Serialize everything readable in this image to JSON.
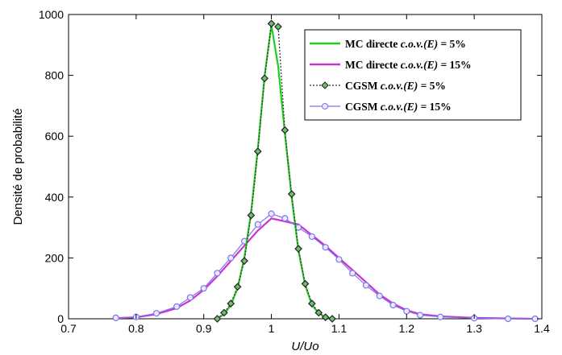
{
  "chart_data": {
    "type": "line",
    "xlabel": "U/Uo",
    "ylabel": "Densité de probabilité",
    "xlim": [
      0.7,
      1.4
    ],
    "ylim": [
      0,
      1000
    ],
    "x_ticks": [
      "0.7",
      "0.8",
      "0.9",
      "1",
      "1.1",
      "1.2",
      "1.3",
      "1.4"
    ],
    "y_ticks": [
      "0",
      "200",
      "400",
      "600",
      "800",
      "1000"
    ],
    "grid": false,
    "legend_position": "top-right",
    "series": [
      {
        "name": "MC directe c.o.v.(E) = 5%",
        "legend_prefix": "MC directe",
        "legend_math": "c.o.v.(E)",
        "legend_value": "= 5%",
        "color": "#22cc22",
        "marker": "none",
        "x": [
          0.92,
          0.93,
          0.94,
          0.95,
          0.96,
          0.97,
          0.98,
          0.99,
          1.0,
          1.01,
          1.02,
          1.03,
          1.04,
          1.05,
          1.06,
          1.07,
          1.08,
          1.09
        ],
        "y": [
          0,
          15,
          45,
          100,
          200,
          350,
          560,
          800,
          965,
          830,
          610,
          400,
          225,
          110,
          45,
          18,
          5,
          0
        ]
      },
      {
        "name": "MC directe c.o.v.(E) = 15%",
        "legend_prefix": "MC directe",
        "legend_math": "c.o.v.(E)",
        "legend_value": "= 15%",
        "color": "#cc33cc",
        "marker": "none",
        "x": [
          0.77,
          0.8,
          0.83,
          0.86,
          0.88,
          0.9,
          0.92,
          0.94,
          0.96,
          0.98,
          1.0,
          1.02,
          1.04,
          1.06,
          1.08,
          1.1,
          1.12,
          1.14,
          1.16,
          1.18,
          1.2,
          1.22,
          1.25,
          1.3,
          1.35,
          1.39
        ],
        "y": [
          2,
          5,
          15,
          35,
          60,
          95,
          140,
          190,
          240,
          290,
          330,
          320,
          310,
          275,
          240,
          200,
          160,
          120,
          80,
          50,
          28,
          15,
          8,
          3,
          1,
          0
        ]
      },
      {
        "name": "CGSM c.o.v.(E) = 5%",
        "legend_prefix": "CGSM",
        "legend_math": "c.o.v.(E)",
        "legend_value": "= 5%",
        "color": "#333333",
        "marker": "diamond",
        "x": [
          0.92,
          0.93,
          0.94,
          0.95,
          0.96,
          0.97,
          0.98,
          0.99,
          1.0,
          1.01,
          1.02,
          1.03,
          1.04,
          1.05,
          1.06,
          1.07,
          1.08,
          1.09
        ],
        "y": [
          0,
          20,
          50,
          105,
          190,
          340,
          550,
          790,
          970,
          960,
          620,
          410,
          230,
          115,
          50,
          20,
          5,
          0
        ]
      },
      {
        "name": "CGSM c.o.v.(E) = 15%",
        "legend_prefix": "CGSM",
        "legend_math": "c.o.v.(E)",
        "legend_value": "= 15%",
        "color": "#7777ee",
        "marker": "circle",
        "x": [
          0.77,
          0.8,
          0.83,
          0.86,
          0.88,
          0.9,
          0.92,
          0.94,
          0.96,
          0.98,
          1.0,
          1.02,
          1.04,
          1.06,
          1.08,
          1.1,
          1.12,
          1.14,
          1.16,
          1.18,
          1.2,
          1.22,
          1.25,
          1.3,
          1.35,
          1.39
        ],
        "y": [
          3,
          6,
          18,
          40,
          70,
          100,
          150,
          200,
          255,
          310,
          345,
          330,
          300,
          270,
          235,
          195,
          150,
          110,
          75,
          45,
          25,
          12,
          6,
          2,
          0,
          0
        ]
      }
    ]
  }
}
